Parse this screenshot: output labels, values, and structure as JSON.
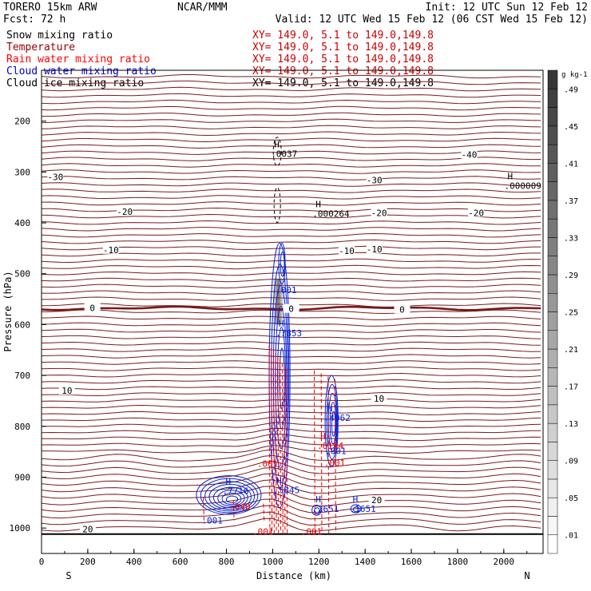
{
  "header": {
    "model": "TORERO  15km ARW",
    "forecast": "Fcst:   72 h",
    "center": "NCAR/MMM",
    "init": "Init: 12 UTC Sun 12 Feb 12",
    "valid": "Valid: 12 UTC Wed 15 Feb 12 (06 CST Wed 15 Feb 12)"
  },
  "legend": [
    {
      "label": "Snow mixing ratio",
      "xy": "XY= 149.0,  5.1 to 149.0,149.8",
      "color": "#000000",
      "xy_color": "#cc0000"
    },
    {
      "label": "Temperature",
      "xy": "XY= 149.0,  5.1 to 149.0,149.8",
      "color": "#990000",
      "xy_color": "#cc0000"
    },
    {
      "label": "Rain water mixing ratio",
      "xy": "XY= 149.0,  5.1 to 149.0,149.8",
      "color": "#ff0000",
      "xy_color": "#cc0000"
    },
    {
      "label": "Cloud water mixing ratio",
      "xy": "XY= 149.0,  5.1 to 149.0,149.8",
      "color": "#0000cc",
      "xy_color": "#cc0000"
    },
    {
      "label": "Cloud ice mixing ratio",
      "xy": "XY= 149.0,  5.1 to 149.0,149.8",
      "color": "#000000",
      "xy_color": "#000000"
    }
  ],
  "colors": {
    "temperature": "#7a1a1a",
    "rain": "#ee0000",
    "cloud_water": "#0022dd",
    "axis": "#000000"
  },
  "chart_data": {
    "type": "contour",
    "xlabel": "Distance (km)",
    "ylabel": "Pressure (hPa)",
    "xlim": [
      0,
      2170
    ],
    "ylim": [
      1050,
      100
    ],
    "x_ticks": [
      0,
      200,
      400,
      600,
      800,
      1000,
      1200,
      1400,
      1600,
      1800,
      2000
    ],
    "y_ticks": [
      200,
      300,
      400,
      500,
      600,
      700,
      800,
      900,
      1000
    ],
    "x_end_labels": {
      "left": "S",
      "right": "N"
    },
    "colorbar": {
      "unit": "g kg-1",
      "labels": [
        ".01",
        ".05",
        ".09",
        ".13",
        ".17",
        ".21",
        ".25",
        ".29",
        ".33",
        ".37",
        ".41",
        ".45",
        ".49"
      ]
    },
    "temperature_contours": [
      {
        "label": "-40",
        "pressure": 266,
        "label_x": 1850
      },
      {
        "label": "-30",
        "pressure": 310,
        "label_x": 60
      },
      {
        "label": "-30",
        "pressure": 316,
        "label_x": 1440
      },
      {
        "label": "-20",
        "pressure": 378,
        "label_x": 360
      },
      {
        "label": "-20",
        "pressure": 380,
        "label_x": 1460
      },
      {
        "label": "-20",
        "pressure": 380,
        "label_x": 1880
      },
      {
        "label": "-10",
        "pressure": 453,
        "label_x": 300
      },
      {
        "label": "-10",
        "pressure": 455,
        "label_x": 1320
      },
      {
        "label": "-10",
        "pressure": 452,
        "label_x": 1440
      },
      {
        "label": "0",
        "pressure": 567,
        "label_x": 220
      },
      {
        "label": "0",
        "pressure": 569,
        "label_x": 1080
      },
      {
        "label": "0",
        "pressure": 570,
        "label_x": 1560
      },
      {
        "label": "10",
        "pressure": 730,
        "label_x": 110
      },
      {
        "label": "10",
        "pressure": 745,
        "label_x": 1460
      },
      {
        "label": "20",
        "pressure": 1002,
        "label_x": 200
      },
      {
        "label": "20",
        "pressure": 945,
        "label_x": 1450
      }
    ],
    "maxima": [
      {
        "value": ".0037",
        "x_km": 1020,
        "p": 264,
        "series": "cloud_ice"
      },
      {
        "value": ".000264",
        "x_km": 1200,
        "p": 382,
        "series": "cloud_ice"
      },
      {
        "value": ".000009",
        "x_km": 2030,
        "p": 327,
        "series": "cloud_ice"
      },
      {
        "value": ".7716",
        "x_km": 810,
        "p": 927,
        "series": "cloud_water"
      },
      {
        "value": ".5845",
        "x_km": 1030,
        "p": 925,
        "series": "cloud_water"
      },
      {
        "value": ".7853",
        "x_km": 1040,
        "p": 617,
        "series": "cloud_water"
      },
      {
        "value": ".4962",
        "x_km": 1250,
        "p": 783,
        "series": "cloud_water"
      },
      {
        "value": ".2651",
        "x_km": 1200,
        "p": 962,
        "series": "cloud_water"
      },
      {
        "value": ".1651",
        "x_km": 1360,
        "p": 962,
        "series": "cloud_water"
      },
      {
        "value": ".0184",
        "x_km": 1220,
        "p": 838,
        "series": "rain"
      }
    ],
    "min_labels": [
      {
        "value": ".001",
        "x_km": 720,
        "p": 985,
        "series": "cloud_water"
      },
      {
        "value": ".001",
        "x_km": 1040,
        "p": 532,
        "series": "cloud_water"
      },
      {
        "value": ".001",
        "x_km": 1255,
        "p": 848,
        "series": "cloud_water"
      },
      {
        "value": ".001",
        "x_km": 960,
        "p": 873,
        "series": "rain"
      },
      {
        "value": ".001",
        "x_km": 1250,
        "p": 872,
        "series": "rain"
      },
      {
        "value": ".001",
        "x_km": 940,
        "p": 1007,
        "series": "rain"
      },
      {
        "value": ".001",
        "x_km": 1150,
        "p": 1007,
        "series": "rain"
      },
      {
        "value": ".040",
        "x_km": 840,
        "p": 958,
        "series": "rain"
      }
    ]
  }
}
